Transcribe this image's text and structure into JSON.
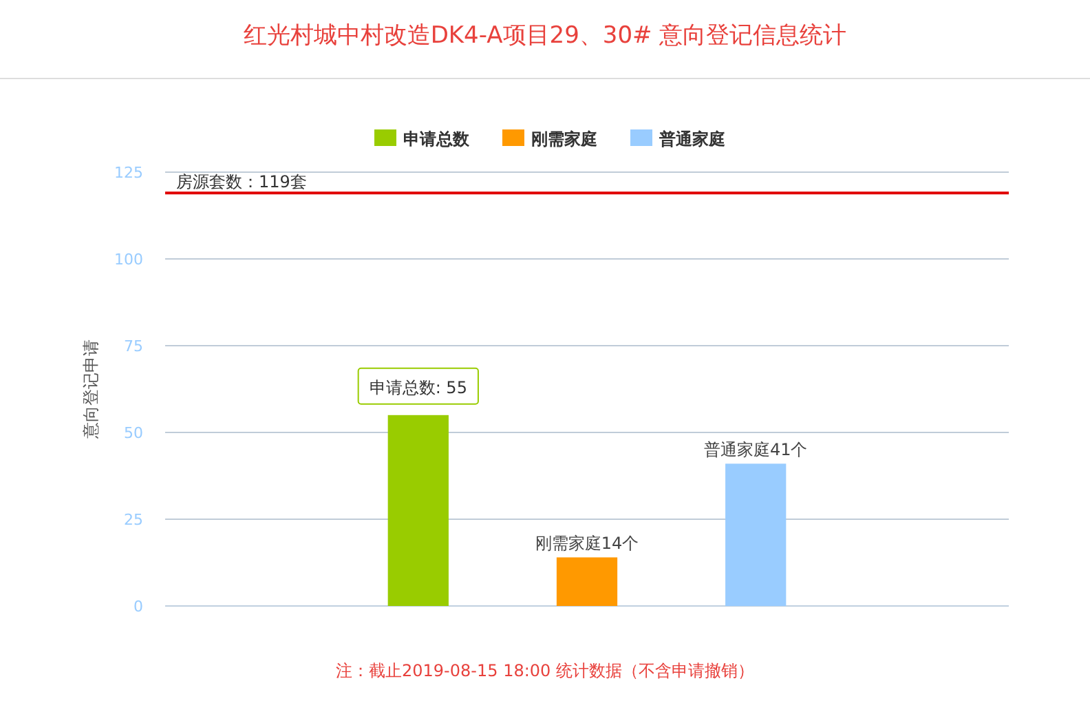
{
  "chart_data": {
    "type": "bar",
    "title": "红光村城中村改造DK4-A项目29、30# 意向登记信息统计",
    "ylabel": "意向登记申请",
    "categories": [
      null,
      null,
      null,
      null,
      null
    ],
    "series": [
      {
        "name": "申请总数",
        "color": "#99cc00",
        "values": [
          null,
          55,
          null,
          null,
          null
        ],
        "value_labels": [
          null,
          null,
          null,
          null,
          null
        ]
      },
      {
        "name": "刚需家庭",
        "color": "#ff9900",
        "values": [
          null,
          null,
          14,
          null,
          null
        ],
        "value_labels": [
          null,
          null,
          "刚需家庭14个",
          null,
          null
        ]
      },
      {
        "name": "普通家庭",
        "color": "#99ccff",
        "values": [
          null,
          null,
          null,
          41,
          null
        ],
        "value_labels": [
          null,
          null,
          null,
          "普通家庭41个",
          null
        ]
      }
    ],
    "ylim": [
      0,
      125
    ],
    "yticks": [
      0,
      25,
      50,
      75,
      100,
      125
    ],
    "grid": "y",
    "legend": "top",
    "ref_lines": [
      {
        "axis": "y",
        "value": 119,
        "label": "房源套数：119套",
        "color": "#e00000"
      }
    ],
    "annotations": [
      "申请总数: 55",
      "注：截止2019-08-15 18:00 统计数据（不含申请撤销）"
    ]
  }
}
